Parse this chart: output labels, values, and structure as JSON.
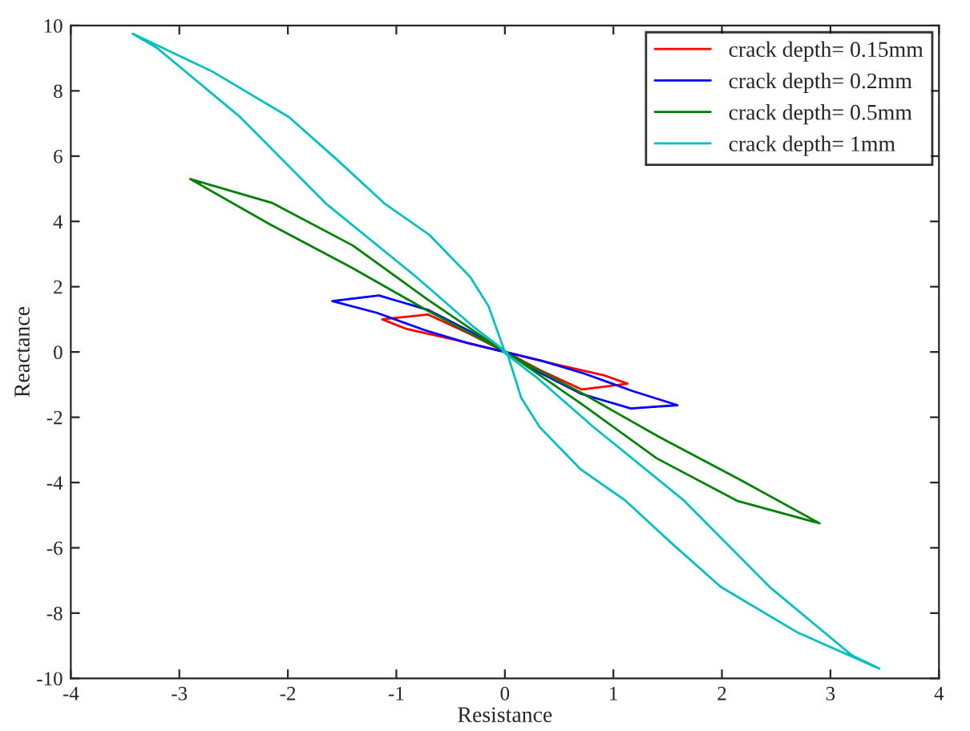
{
  "chart_data": {
    "type": "line",
    "xlabel": "Resistance",
    "ylabel": "Reactance",
    "xlim": [
      -4,
      4
    ],
    "ylim": [
      -10,
      10
    ],
    "xticks": [
      -4,
      -3,
      -2,
      -1,
      0,
      1,
      2,
      3,
      4
    ],
    "yticks": [
      -10,
      -8,
      -6,
      -4,
      -2,
      0,
      2,
      4,
      6,
      8,
      10
    ],
    "grid": false,
    "legend": "top right",
    "marker": "none",
    "line_style": "solid",
    "series": [
      {
        "name": "crack depth= 0.15mm",
        "color": "#ff0000",
        "x": [
          0,
          -0.32,
          -0.71,
          -1.13,
          -0.91,
          -0.47,
          0.02,
          0.32,
          0.71,
          1.13,
          0.91,
          0.47,
          -0.02
        ],
        "values": [
          0,
          0.55,
          1.15,
          1.0,
          0.71,
          0.38,
          -0.02,
          -0.55,
          -1.15,
          -0.97,
          -0.71,
          -0.38,
          0.02
        ]
      },
      {
        "name": "crack depth= 0.2mm",
        "color": "#0000ff",
        "x": [
          0,
          -0.32,
          -0.71,
          -1.16,
          -1.59,
          -1.18,
          -0.73,
          -0.34,
          0.02,
          0.32,
          0.71,
          1.16,
          1.59,
          1.18,
          0.73,
          0.34,
          -0.02
        ],
        "values": [
          0,
          0.63,
          1.29,
          1.73,
          1.56,
          1.2,
          0.66,
          0.27,
          -0.02,
          -0.63,
          -1.29,
          -1.73,
          -1.63,
          -1.2,
          -0.66,
          -0.27,
          0.02
        ]
      },
      {
        "name": "crack depth= 0.5mm",
        "color": "#008000",
        "x": [
          0,
          -0.71,
          -1.4,
          -2.14,
          -2.9,
          -2.16,
          -1.42,
          -0.73,
          0.02,
          0.71,
          1.4,
          2.14,
          2.9,
          2.16,
          1.42,
          0.73,
          -0.02
        ],
        "values": [
          0,
          1.6,
          3.26,
          4.56,
          5.3,
          3.9,
          2.6,
          1.3,
          -0.02,
          -1.6,
          -3.26,
          -4.56,
          -5.25,
          -3.9,
          -2.6,
          -1.3,
          0.02
        ]
      },
      {
        "name": "crack depth= 1mm",
        "color": "#00bfbf",
        "x": [
          0,
          -0.15,
          -0.32,
          -0.7,
          -1.11,
          -1.55,
          -1.99,
          -2.7,
          -3.43,
          -3.2,
          -2.44,
          -1.65,
          -0.81,
          -0.3,
          0.02,
          0.15,
          0.32,
          0.7,
          1.11,
          1.55,
          1.99,
          2.7,
          3.45,
          3.2,
          2.44,
          1.65,
          0.81,
          0.3,
          -0.02
        ],
        "values": [
          0,
          1.4,
          2.3,
          3.6,
          4.55,
          5.9,
          7.2,
          8.6,
          9.75,
          9.3,
          7.2,
          4.55,
          2.28,
          0.8,
          -0.02,
          -1.4,
          -2.3,
          -3.6,
          -4.55,
          -5.9,
          -7.2,
          -8.6,
          -9.7,
          -9.3,
          -7.2,
          -4.55,
          -2.28,
          -0.8,
          0.02
        ]
      }
    ]
  }
}
